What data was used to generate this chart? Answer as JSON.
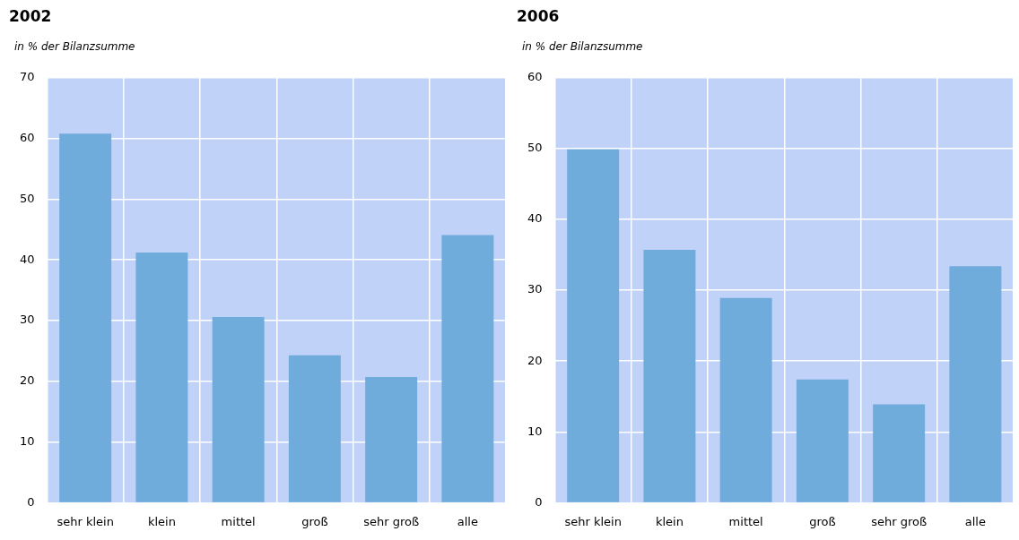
{
  "chart_data": [
    {
      "type": "bar",
      "title": "2002",
      "ylabel": "in % der Bilanzsumme",
      "categories": [
        "sehr klein",
        "klein",
        "mittel",
        "groß",
        "sehr groß",
        "alle"
      ],
      "values": [
        60.8,
        41.2,
        30.6,
        24.3,
        20.7,
        44.1
      ],
      "color": "#6fabdb",
      "ylim": [
        0,
        70
      ],
      "yticks": [
        0,
        10,
        20,
        30,
        40,
        50,
        60,
        70
      ],
      "grid": true,
      "legend": false
    },
    {
      "type": "bar",
      "title": "2006",
      "ylabel": "in % der Bilanzsumme",
      "categories": [
        "sehr klein",
        "klein",
        "mittel",
        "groß",
        "sehr groß",
        "alle"
      ],
      "values": [
        49.9,
        35.7,
        28.9,
        17.4,
        13.9,
        33.4
      ],
      "color": "#6fabdb",
      "ylim": [
        0,
        60
      ],
      "yticks": [
        0,
        10,
        20,
        30,
        40,
        50,
        60
      ],
      "grid": true,
      "legend": false
    }
  ]
}
